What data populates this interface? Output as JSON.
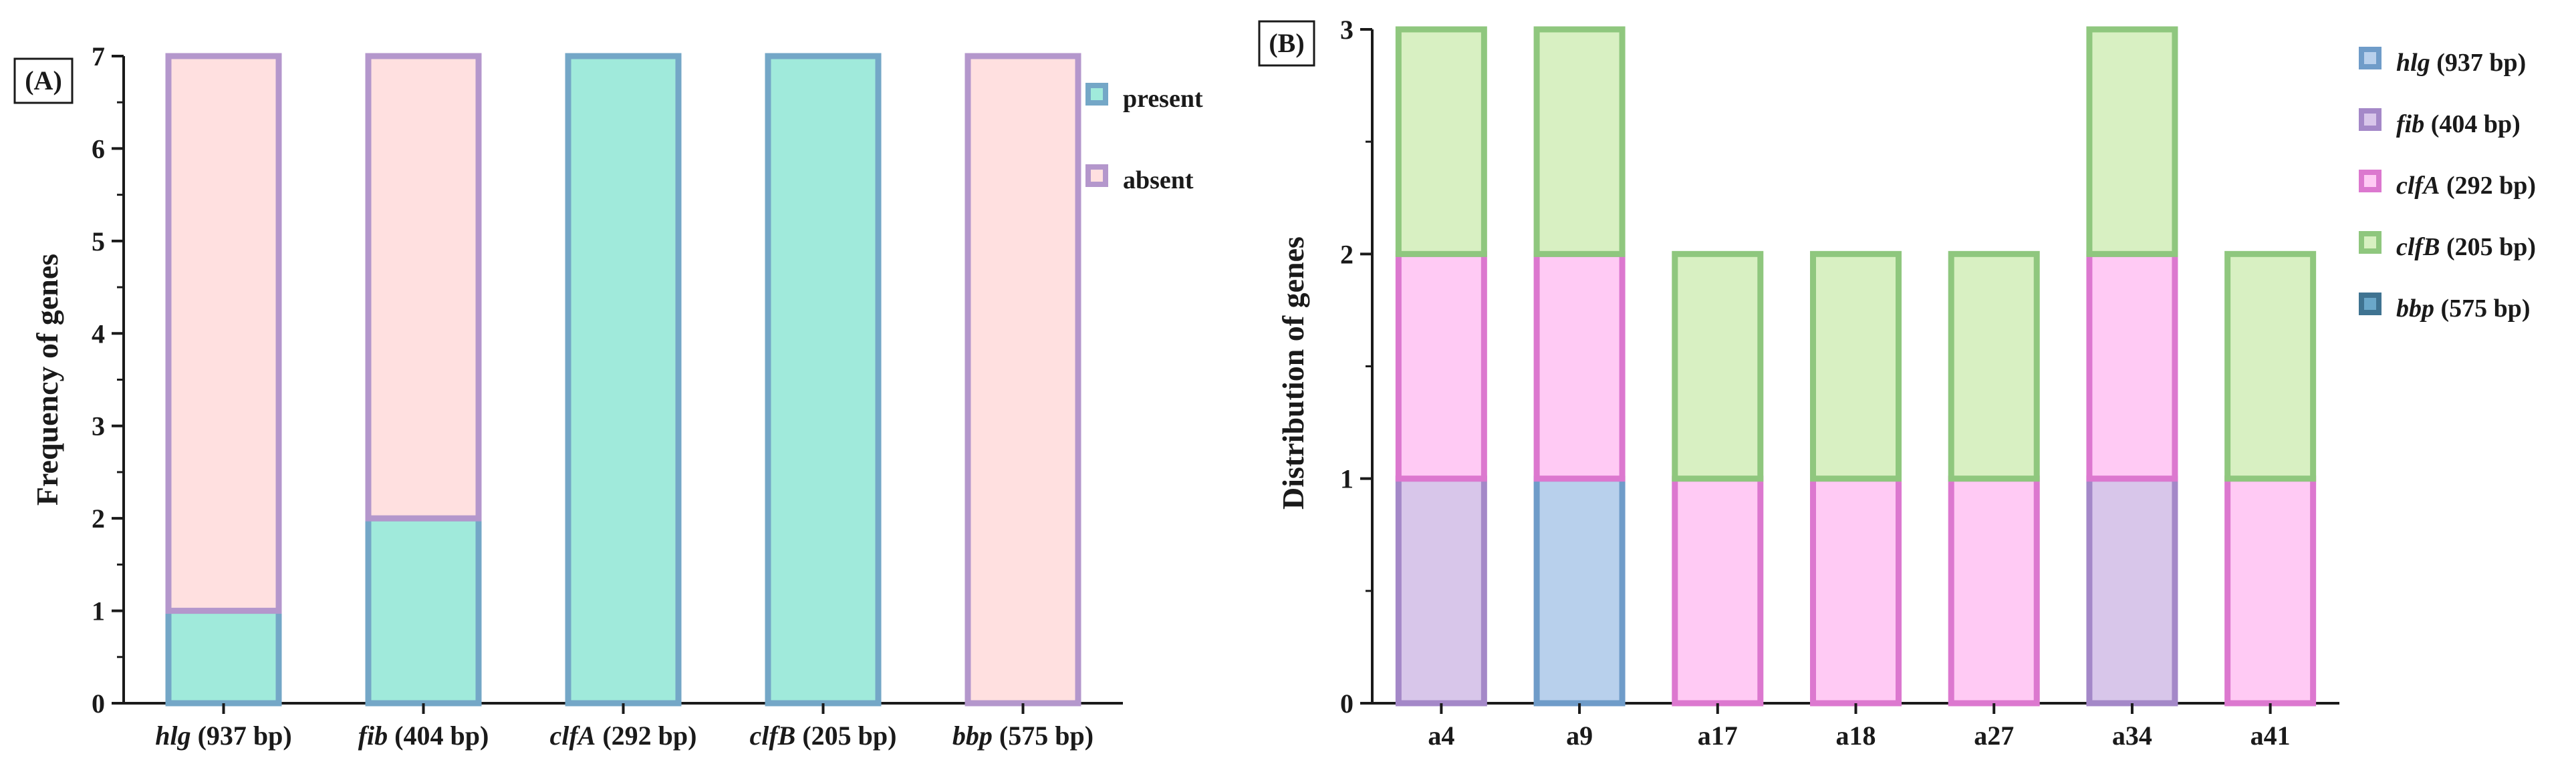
{
  "chart_data": [
    {
      "panel_label": "(A)",
      "type": "bar",
      "stacked": true,
      "ylabel": "Frequency of genes",
      "xlabel": "",
      "ylim": [
        0,
        7
      ],
      "yticks": [
        "0",
        "1",
        "2",
        "3",
        "4",
        "5",
        "6",
        "7"
      ],
      "categories": [
        {
          "gene": "hlg",
          "size": "(937 bp)"
        },
        {
          "gene": "fib",
          "size": "(404 bp)"
        },
        {
          "gene": "clfA",
          "size": "(292 bp)"
        },
        {
          "gene": "clfB",
          "size": "(205 bp)"
        },
        {
          "gene": "bbp",
          "size": "(575 bp)"
        }
      ],
      "series": [
        {
          "name": "present",
          "values": [
            1,
            2,
            7,
            7,
            0
          ],
          "fill": "#a0eadb",
          "stroke": "#74a7c7"
        },
        {
          "name": "absent",
          "values": [
            6,
            5,
            0,
            0,
            7
          ],
          "fill": "#ffe0e0",
          "stroke": "#b497cc"
        }
      ],
      "legend_position": "top-right"
    },
    {
      "panel_label": "(B)",
      "type": "bar",
      "stacked": true,
      "ylabel": "Distribution of genes",
      "xlabel": "",
      "ylim": [
        0,
        3
      ],
      "yticks": [
        "0",
        "1",
        "2",
        "3"
      ],
      "categories": [
        "a4",
        "a9",
        "a17",
        "a18",
        "a27",
        "a34",
        "a41"
      ],
      "segments": [
        [
          "fib",
          "clfA",
          "clfB"
        ],
        [
          "hlg",
          "clfA",
          "clfB"
        ],
        [
          "clfA",
          "clfB"
        ],
        [
          "clfA",
          "clfB"
        ],
        [
          "clfA",
          "clfB"
        ],
        [
          "fib",
          "clfA",
          "clfB"
        ],
        [
          "clfA",
          "clfB"
        ]
      ],
      "series": [
        {
          "name": "hlg",
          "size": "(937 bp)",
          "fill": "#b8d0ec",
          "stroke": "#6f9cc9",
          "legend_fill": "#b8d0ec"
        },
        {
          "name": "fib",
          "size": "(404 bp)",
          "fill": "#d8c6ea",
          "stroke": "#a488c8",
          "legend_fill": "#d8c6ea"
        },
        {
          "name": "clfA",
          "size": "(292 bp)",
          "fill": "#ffcaf4",
          "stroke": "#dc78cf",
          "legend_fill": "#ffcaf4"
        },
        {
          "name": "clfB",
          "size": "(205 bp)",
          "fill": "#d8f0c2",
          "stroke": "#8fc77e",
          "legend_fill": "#d8f0c2"
        },
        {
          "name": "bbp",
          "size": "(575 bp)",
          "fill": "#6aa7c9",
          "stroke": "#3f7391",
          "legend_fill": "#6aa7c9"
        }
      ],
      "legend_position": "top-right"
    }
  ]
}
